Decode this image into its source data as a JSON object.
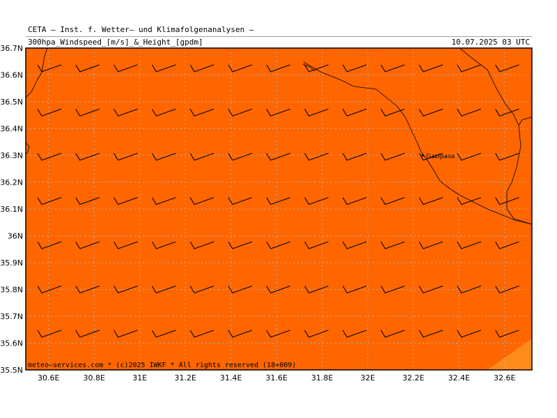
{
  "header": {
    "line1": "CETA — Inst. f. Wetter— und Klimafolgenanalysen —",
    "line2": "300hpa_Windspeed_[m/s]_&_Height_[gpdm]",
    "datetime": "10.07.2025 03 UTC"
  },
  "map": {
    "lat_ticks": [
      "36.7N",
      "36.6N",
      "36.5N",
      "36.4N",
      "36.3N",
      "36.2N",
      "36.1N",
      "36N",
      "35.9N",
      "35.8N",
      "35.7N",
      "35.6N",
      "35.5N"
    ],
    "lon_ticks": [
      "30.6E",
      "30.8E",
      "31E",
      "31.2E",
      "31.4E",
      "31.6E",
      "31.8E",
      "32E",
      "32.2E",
      "32.4E",
      "32.6E"
    ],
    "lat_range": [
      35.5,
      36.7
    ],
    "lon_range": [
      30.5,
      32.72
    ],
    "fill_color": "#ff6600",
    "corner_fill_color": "#ff8c1a",
    "grid": true,
    "city_label": "Gazipasa",
    "footer": "meteo—services.com * (c)2025 IWKF * All rights reserved (18+009)"
  }
}
